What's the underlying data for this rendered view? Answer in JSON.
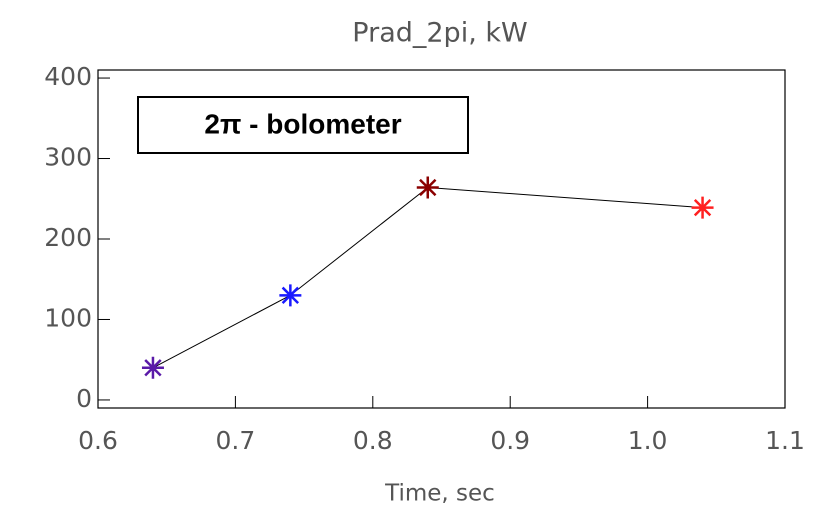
{
  "chart_data": {
    "type": "line",
    "title": "Prad_2pi, kW",
    "x_label": "Time, sec",
    "annotation": "2π - bolometer",
    "x": [
      0.64,
      0.74,
      0.84,
      1.04
    ],
    "series": [
      {
        "values": [
          40,
          130,
          264,
          239
        ],
        "color": "#000000",
        "point_colors": [
          "#5a1aa8",
          "#1a1aff",
          "#8b0000",
          "#ff2020"
        ]
      }
    ],
    "xlim": [
      0.6,
      1.1
    ],
    "xticks": [
      0.6,
      0.7,
      0.8,
      0.9,
      {
        "value": 1,
        "label": "1.0"
      },
      1.1
    ],
    "ylim": [
      -10,
      410
    ],
    "yticks": [
      0,
      100,
      200,
      300,
      400
    ]
  }
}
